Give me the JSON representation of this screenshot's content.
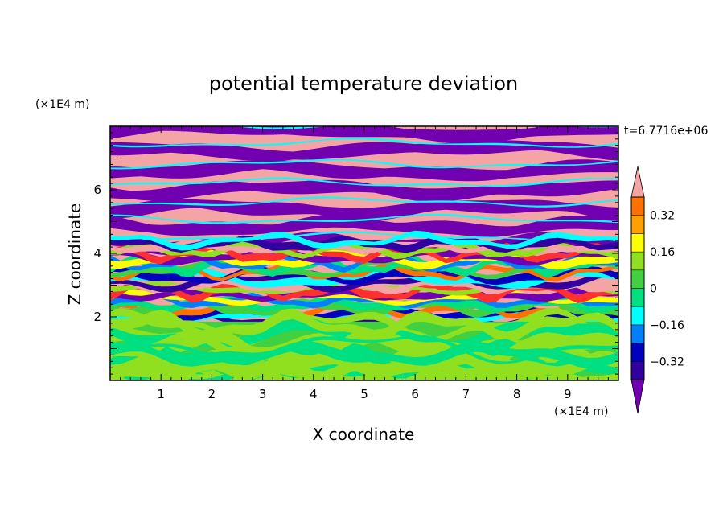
{
  "chart_data": {
    "type": "heatmap",
    "title": "potential temperature deviation",
    "xlabel": "X coordinate",
    "ylabel": "Z coordinate",
    "x_unit": "(×1E4 m)",
    "y_unit": "(×1E4 m)",
    "time_label": "t=6.7716e+06",
    "xlim": [
      0,
      10
    ],
    "ylim": [
      0,
      8
    ],
    "x_ticks": [
      "1",
      "2",
      "3",
      "4",
      "5",
      "6",
      "7",
      "8",
      "9"
    ],
    "y_ticks": [
      "2",
      "4",
      "6"
    ],
    "colorbar": {
      "levels": [
        -0.4,
        -0.32,
        -0.24,
        -0.16,
        -0.08,
        0,
        0.08,
        0.16,
        0.24,
        0.32,
        0.4
      ],
      "tick_labels": [
        "0.32",
        "0.16",
        "0",
        "−0.16",
        "−0.32"
      ],
      "colors_high_to_low": [
        "#ff3030",
        "#ff7000",
        "#ffa000",
        "#ffff00",
        "#90e020",
        "#40d040",
        "#00e080",
        "#00ffff",
        "#0080ff",
        "#0000c0",
        "#3000a0"
      ],
      "over_color": "#f4a4a4",
      "under_color": "#7000b0",
      "extend": "both"
    },
    "field_summary": {
      "z_0_to_1.8": "mostly near 0 to +0.08 (green / light green) with a few spots near +0.16",
      "z_1.8_to_4.5": "strongly mixed layer: alternating bands spanning -0.32 to +0.32",
      "z_4.5_to_8": "alternating horizontal bands of > +0.4 (pink) and < -0.4 (purple)"
    }
  }
}
